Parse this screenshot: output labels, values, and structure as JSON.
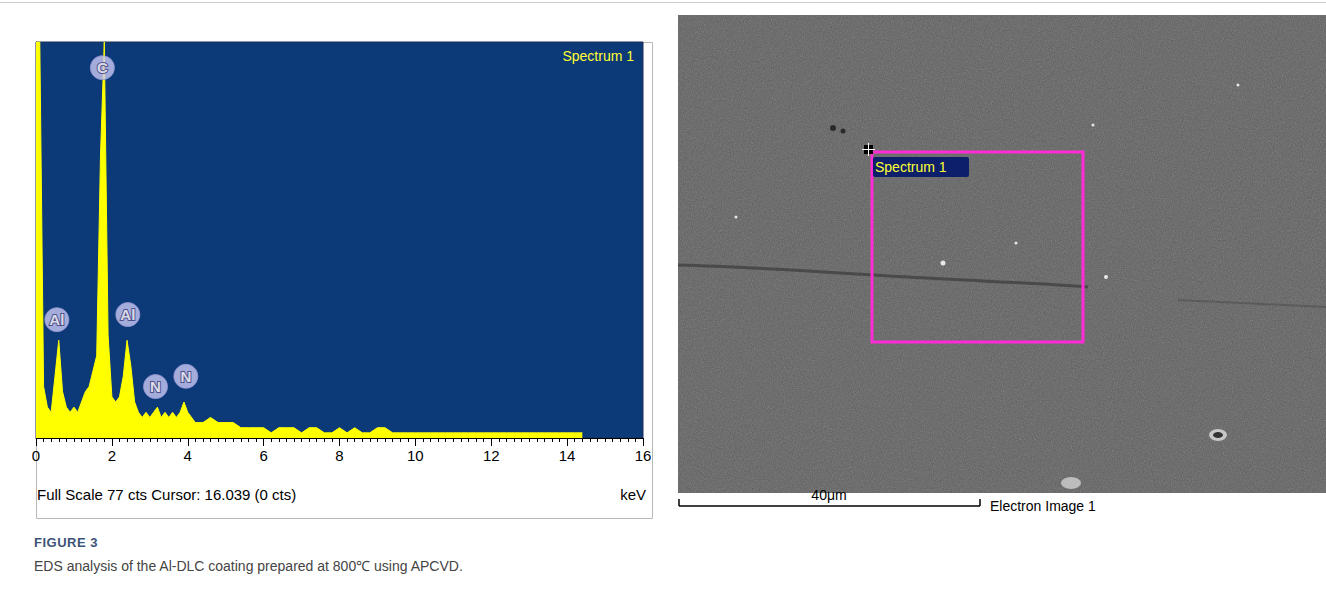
{
  "figure": {
    "label": "FIGURE 3",
    "caption": "EDS analysis of the Al-DLC coating prepared at 800℃ using APCVD."
  },
  "chart_data": {
    "type": "area",
    "title": "Spectrum 1",
    "x_label": "keV",
    "footer": "Full Scale 77 cts Cursor: 16.039 (0 cts)",
    "color": "#ffff00",
    "x": [
      0.0,
      0.1,
      0.2,
      0.3,
      0.4,
      0.5,
      0.6,
      0.7,
      0.8,
      0.9,
      1.0,
      1.1,
      1.2,
      1.3,
      1.4,
      1.5,
      1.6,
      1.7,
      1.8,
      1.9,
      2.0,
      2.1,
      2.2,
      2.3,
      2.4,
      2.5,
      2.6,
      2.7,
      2.8,
      2.9,
      3.0,
      3.1,
      3.2,
      3.3,
      3.4,
      3.5,
      3.6,
      3.7,
      3.8,
      3.9,
      4.0,
      4.2,
      4.4,
      4.6,
      4.8,
      5.0,
      5.2,
      5.4,
      5.6,
      5.8,
      6.0,
      6.2,
      6.4,
      6.6,
      6.8,
      7.0,
      7.2,
      7.4,
      7.6,
      7.8,
      8.0,
      8.2,
      8.4,
      8.6,
      8.8,
      9.0,
      9.2,
      9.4,
      9.6,
      9.8,
      10.0,
      10.2,
      10.4,
      10.6,
      10.8,
      11.0,
      11.2,
      11.4,
      11.6,
      11.8,
      12.0,
      12.2,
      12.4,
      12.6,
      12.8,
      13.0,
      13.2,
      13.4,
      13.6,
      13.8,
      14.0,
      14.2,
      14.4
    ],
    "values": [
      77,
      77,
      10,
      6,
      5,
      12,
      19,
      9,
      6,
      5,
      6,
      5,
      7,
      9,
      10,
      13,
      16,
      55,
      77,
      20,
      8,
      7,
      8,
      12,
      19,
      14,
      7,
      5,
      4,
      5,
      4,
      5,
      6,
      4,
      5,
      4,
      5,
      4,
      5,
      7,
      5,
      3,
      3,
      4,
      3,
      3,
      3,
      2,
      2,
      2,
      2,
      1,
      2,
      2,
      2,
      1,
      2,
      2,
      1,
      1,
      2,
      1,
      2,
      1,
      1,
      2,
      2,
      1,
      1,
      1,
      1,
      1,
      1,
      1,
      1,
      1,
      1,
      1,
      1,
      1,
      1,
      1,
      1,
      1,
      1,
      1,
      1,
      1,
      1,
      1,
      1,
      1,
      1
    ],
    "peak_labels": [
      {
        "label": "Al",
        "x": 0.55,
        "y": 23
      },
      {
        "label": "C",
        "x": 1.75,
        "y": 72
      },
      {
        "label": "Al",
        "x": 2.42,
        "y": 24
      },
      {
        "label": "N",
        "x": 3.15,
        "y": 10
      },
      {
        "label": "N",
        "x": 3.95,
        "y": 12
      }
    ],
    "xlim": [
      0,
      16
    ],
    "xticks": [
      0,
      2,
      4,
      6,
      8,
      10,
      12,
      14,
      16
    ],
    "ylim": [
      0,
      77
    ],
    "tick_labels": "x",
    "grid": false
  },
  "electron_image": {
    "title": "Electron Image 1",
    "scale_bar": "40μm",
    "region_label": "Spectrum 1"
  }
}
